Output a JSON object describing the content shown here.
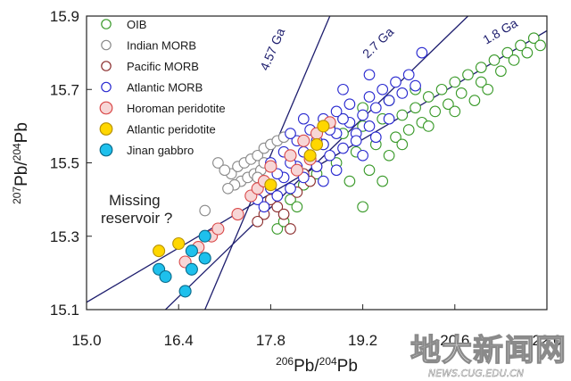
{
  "chart_data": {
    "type": "scatter",
    "xlabel": "206Pb/204Pb",
    "ylabel": "207Pb/204Pb",
    "xlim": [
      15.0,
      22.0
    ],
    "ylim": [
      15.1,
      15.9
    ],
    "xticks": [
      "15.0",
      "16.4",
      "17.8",
      "19.2",
      "20.6",
      "22.0"
    ],
    "yticks": [
      "15.1",
      "15.3",
      "15.5",
      "15.7",
      "15.9"
    ],
    "grid": false,
    "legend_position": "top-left",
    "isochrons": [
      {
        "label": "4.57 Ga",
        "points": [
          [
            16.8,
            15.1
          ],
          [
            18.7,
            15.9
          ]
        ]
      },
      {
        "label": "2.7 Ga",
        "points": [
          [
            16.2,
            15.1
          ],
          [
            20.8,
            15.9
          ]
        ]
      },
      {
        "label": "1.8 Ga",
        "points": [
          [
            15.0,
            15.12
          ],
          [
            22.0,
            15.86
          ]
        ]
      }
    ],
    "annotation": "Missing reservoir ?",
    "series": [
      {
        "name": "OIB",
        "edge": "#3a9a2a",
        "fill": "#ffffff",
        "points": [
          [
            18.6,
            15.55
          ],
          [
            18.9,
            15.58
          ],
          [
            19.2,
            15.6
          ],
          [
            19.5,
            15.62
          ],
          [
            19.8,
            15.63
          ],
          [
            20.0,
            15.65
          ],
          [
            20.2,
            15.68
          ],
          [
            20.4,
            15.7
          ],
          [
            20.6,
            15.72
          ],
          [
            20.8,
            15.74
          ],
          [
            21.0,
            15.76
          ],
          [
            21.2,
            15.78
          ],
          [
            21.4,
            15.8
          ],
          [
            21.6,
            15.82
          ],
          [
            21.8,
            15.84
          ],
          [
            21.5,
            15.78
          ],
          [
            21.3,
            15.75
          ],
          [
            21.0,
            15.72
          ],
          [
            20.7,
            15.69
          ],
          [
            20.5,
            15.66
          ],
          [
            20.3,
            15.64
          ],
          [
            20.1,
            15.61
          ],
          [
            19.9,
            15.59
          ],
          [
            19.7,
            15.57
          ],
          [
            19.4,
            15.55
          ],
          [
            19.1,
            15.53
          ],
          [
            18.8,
            15.5
          ],
          [
            18.5,
            15.47
          ],
          [
            18.3,
            15.44
          ],
          [
            18.1,
            15.4
          ],
          [
            19.0,
            15.45
          ],
          [
            19.3,
            15.48
          ],
          [
            19.6,
            15.52
          ],
          [
            19.8,
            15.55
          ],
          [
            20.2,
            15.6
          ],
          [
            20.6,
            15.64
          ],
          [
            20.9,
            15.67
          ],
          [
            21.1,
            15.7
          ],
          [
            21.7,
            15.8
          ],
          [
            21.9,
            15.82
          ],
          [
            20.0,
            15.7
          ],
          [
            19.6,
            15.67
          ],
          [
            19.2,
            15.65
          ],
          [
            18.9,
            15.62
          ],
          [
            18.7,
            15.6
          ],
          [
            17.9,
            15.32
          ],
          [
            18.0,
            15.34
          ],
          [
            18.2,
            15.38
          ],
          [
            19.5,
            15.45
          ],
          [
            19.2,
            15.38
          ]
        ]
      },
      {
        "name": "Indian MORB",
        "edge": "#8a8a8a",
        "fill": "#ffffff",
        "points": [
          [
            17.2,
            15.47
          ],
          [
            17.3,
            15.49
          ],
          [
            17.4,
            15.5
          ],
          [
            17.5,
            15.51
          ],
          [
            17.6,
            15.52
          ],
          [
            17.7,
            15.54
          ],
          [
            17.35,
            15.45
          ],
          [
            17.45,
            15.46
          ],
          [
            17.55,
            15.47
          ],
          [
            17.65,
            15.48
          ],
          [
            17.25,
            15.44
          ],
          [
            17.8,
            15.55
          ],
          [
            17.9,
            15.56
          ],
          [
            18.0,
            15.57
          ],
          [
            17.15,
            15.43
          ],
          [
            16.8,
            15.37
          ],
          [
            17.0,
            15.5
          ],
          [
            17.1,
            15.48
          ],
          [
            17.6,
            15.46
          ],
          [
            17.7,
            15.5
          ]
        ]
      },
      {
        "name": "Pacific MORB",
        "edge": "#8b2e2e",
        "fill": "#ffffff",
        "points": [
          [
            18.1,
            15.32
          ],
          [
            17.7,
            15.36
          ],
          [
            17.9,
            15.38
          ],
          [
            18.2,
            15.42
          ],
          [
            18.4,
            15.45
          ],
          [
            17.6,
            15.34
          ],
          [
            18.0,
            15.36
          ],
          [
            18.3,
            15.47
          ],
          [
            17.8,
            15.4
          ],
          [
            18.5,
            15.49
          ]
        ]
      },
      {
        "name": "Atlantic MORB",
        "edge": "#2a2ad0",
        "fill": "#ffffff",
        "points": [
          [
            17.6,
            15.4
          ],
          [
            17.8,
            15.43
          ],
          [
            18.0,
            15.46
          ],
          [
            18.2,
            15.49
          ],
          [
            18.4,
            15.52
          ],
          [
            18.6,
            15.55
          ],
          [
            18.8,
            15.58
          ],
          [
            19.0,
            15.61
          ],
          [
            19.2,
            15.63
          ],
          [
            19.4,
            15.65
          ],
          [
            19.6,
            15.67
          ],
          [
            19.8,
            15.69
          ],
          [
            17.9,
            15.47
          ],
          [
            18.1,
            15.5
          ],
          [
            18.3,
            15.53
          ],
          [
            18.5,
            15.56
          ],
          [
            18.7,
            15.59
          ],
          [
            18.9,
            15.62
          ],
          [
            19.1,
            15.58
          ],
          [
            19.3,
            15.6
          ],
          [
            18.5,
            15.49
          ],
          [
            18.7,
            15.52
          ],
          [
            18.9,
            15.54
          ],
          [
            19.1,
            15.56
          ],
          [
            18.3,
            15.46
          ],
          [
            18.1,
            15.43
          ],
          [
            17.9,
            15.41
          ],
          [
            17.7,
            15.38
          ],
          [
            18.6,
            15.62
          ],
          [
            18.4,
            15.59
          ],
          [
            18.2,
            15.56
          ],
          [
            18.0,
            15.53
          ],
          [
            18.8,
            15.64
          ],
          [
            19.0,
            15.66
          ],
          [
            19.3,
            15.68
          ],
          [
            19.5,
            15.7
          ],
          [
            19.7,
            15.72
          ],
          [
            19.9,
            15.74
          ],
          [
            20.0,
            15.71
          ],
          [
            19.6,
            15.62
          ],
          [
            18.6,
            15.45
          ],
          [
            18.8,
            15.48
          ],
          [
            19.4,
            15.57
          ],
          [
            19.2,
            15.52
          ],
          [
            17.8,
            15.5
          ],
          [
            18.1,
            15.58
          ],
          [
            18.3,
            15.62
          ],
          [
            18.9,
            15.7
          ],
          [
            19.3,
            15.74
          ],
          [
            20.1,
            15.8
          ]
        ]
      },
      {
        "name": "Horoman peridotite",
        "edge": "#d94848",
        "fill": "#f7d6d6",
        "points": [
          [
            16.7,
            15.27
          ],
          [
            16.9,
            15.3
          ],
          [
            17.0,
            15.32
          ],
          [
            17.3,
            15.36
          ],
          [
            17.5,
            15.41
          ],
          [
            17.6,
            15.43
          ],
          [
            17.7,
            15.45
          ],
          [
            17.8,
            15.49
          ],
          [
            18.1,
            15.52
          ],
          [
            18.3,
            15.56
          ],
          [
            18.5,
            15.58
          ],
          [
            18.7,
            15.61
          ],
          [
            18.4,
            15.51
          ],
          [
            18.2,
            15.48
          ],
          [
            16.5,
            15.23
          ]
        ]
      },
      {
        "name": "Atlantic peridotite",
        "edge": "#b89200",
        "fill": "#ffd700",
        "points": [
          [
            16.1,
            15.26
          ],
          [
            16.4,
            15.28
          ],
          [
            17.8,
            15.44
          ],
          [
            18.4,
            15.52
          ],
          [
            18.5,
            15.55
          ],
          [
            18.6,
            15.6
          ]
        ]
      },
      {
        "name": "Jinan gabbro",
        "edge": "#0a6a8a",
        "fill": "#1ec0ec",
        "points": [
          [
            16.1,
            15.21
          ],
          [
            16.2,
            15.19
          ],
          [
            16.5,
            15.15
          ],
          [
            16.6,
            15.21
          ],
          [
            16.6,
            15.26
          ],
          [
            16.8,
            15.24
          ],
          [
            16.8,
            15.3
          ]
        ]
      }
    ]
  },
  "watermark": {
    "text": "地大新闻网",
    "subtext": "NEWS.CUG.EDU.CN"
  }
}
